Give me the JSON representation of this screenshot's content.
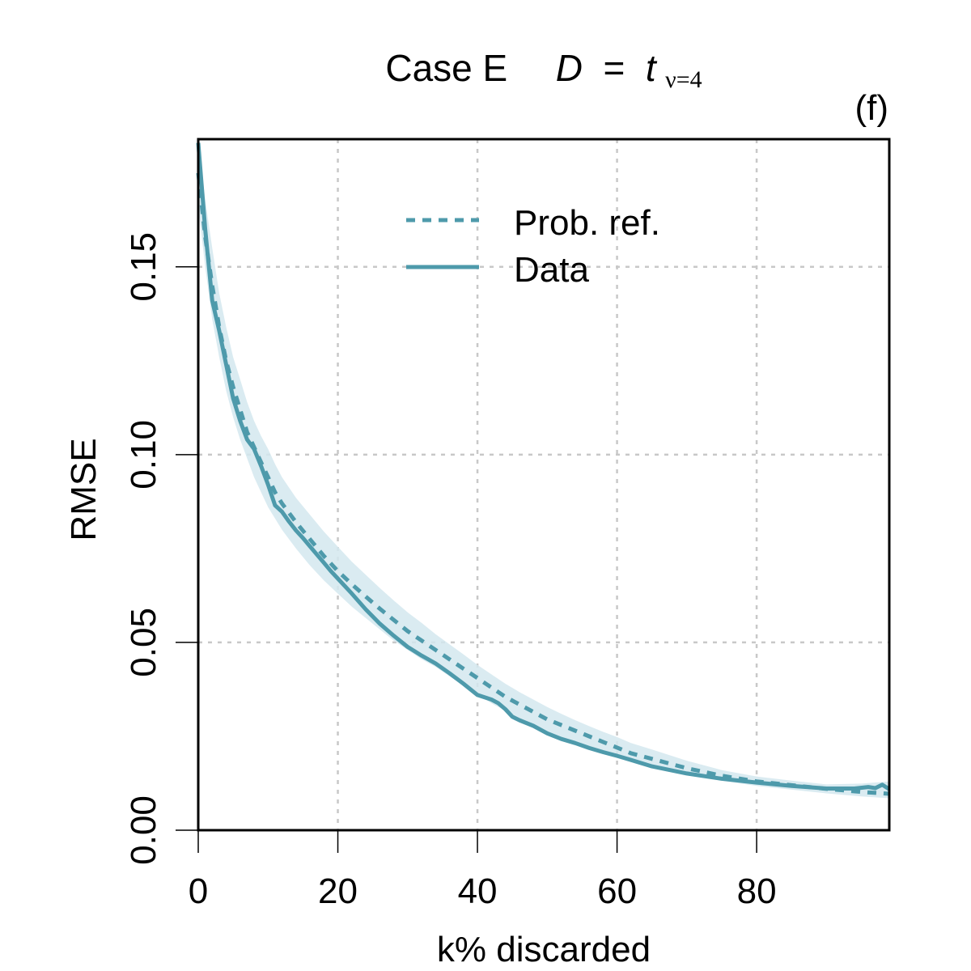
{
  "chart_data": {
    "type": "line",
    "title_case": "Case E",
    "title_var": "D",
    "title_eq": "=",
    "title_t": "t",
    "title_sub": "ν=4",
    "panel_label": "(f)",
    "xlabel": "k% discarded",
    "ylabel": "RMSE",
    "xlim": [
      0,
      99
    ],
    "ylim": [
      0,
      0.184
    ],
    "x_ticks": [
      0,
      20,
      40,
      60,
      80
    ],
    "x_tick_labels": [
      "0",
      "20",
      "40",
      "60",
      "80"
    ],
    "y_ticks": [
      0,
      0.05,
      0.1,
      0.15
    ],
    "y_tick_labels": [
      "0.00",
      "0.05",
      "0.10",
      "0.15"
    ],
    "grid": true,
    "legend_position": "top-center",
    "colors": {
      "series": "#4e9aab",
      "band": "#d3e7ee",
      "grid": "#c8c8c8"
    },
    "series": [
      {
        "name": "Prob. ref.",
        "style": "dashed",
        "x": [
          0,
          1,
          2,
          3,
          4,
          5,
          6,
          7,
          8,
          9,
          10,
          11,
          12,
          14,
          16,
          18,
          20,
          22,
          24,
          26,
          28,
          30,
          32,
          34,
          36,
          38,
          40,
          42,
          44,
          46,
          48,
          50,
          52,
          54,
          56,
          58,
          60,
          62,
          65,
          70,
          75,
          80,
          85,
          90,
          95,
          99
        ],
        "values": [
          0.175,
          0.158,
          0.145,
          0.134,
          0.125,
          0.118,
          0.112,
          0.106,
          0.102,
          0.098,
          0.094,
          0.09,
          0.087,
          0.082,
          0.0775,
          0.073,
          0.069,
          0.0655,
          0.0622,
          0.059,
          0.056,
          0.053,
          0.0505,
          0.048,
          0.0455,
          0.043,
          0.0405,
          0.038,
          0.0355,
          0.0335,
          0.0315,
          0.0295,
          0.028,
          0.0265,
          0.025,
          0.0235,
          0.022,
          0.0205,
          0.019,
          0.0165,
          0.0145,
          0.013,
          0.012,
          0.011,
          0.0102,
          0.0097
        ]
      },
      {
        "name": "Data",
        "style": "solid",
        "x": [
          0,
          1,
          2,
          3,
          4,
          5,
          6,
          7,
          8,
          9,
          10,
          11,
          12,
          13,
          14,
          15,
          16,
          17,
          18,
          19,
          20,
          22,
          24,
          26,
          28,
          30,
          32,
          34,
          36,
          38,
          40,
          42,
          43,
          44,
          45,
          46,
          48,
          50,
          52,
          54,
          56,
          58,
          60,
          62,
          65,
          70,
          75,
          80,
          85,
          90,
          94,
          96,
          97,
          98,
          99
        ],
        "values": [
          0.183,
          0.16,
          0.141,
          0.133,
          0.124,
          0.115,
          0.109,
          0.104,
          0.1015,
          0.097,
          0.092,
          0.0865,
          0.0848,
          0.0822,
          0.0798,
          0.0778,
          0.0756,
          0.0734,
          0.0712,
          0.069,
          0.067,
          0.063,
          0.0588,
          0.055,
          0.0518,
          0.0488,
          0.0465,
          0.0444,
          0.0418,
          0.039,
          0.036,
          0.0348,
          0.0338,
          0.0322,
          0.0302,
          0.0293,
          0.0278,
          0.0258,
          0.0243,
          0.0232,
          0.0219,
          0.0208,
          0.0198,
          0.0187,
          0.017,
          0.0151,
          0.0137,
          0.0127,
          0.0118,
          0.0111,
          0.0111,
          0.0115,
          0.0112,
          0.0121,
          0.0109
        ]
      }
    ],
    "band": {
      "name": "uncertainty band",
      "x": [
        0,
        1,
        2,
        3,
        4,
        5,
        6,
        7,
        8,
        9,
        10,
        11,
        12,
        14,
        16,
        18,
        20,
        22,
        24,
        26,
        28,
        30,
        32,
        34,
        36,
        38,
        40,
        42,
        44,
        46,
        48,
        50,
        52,
        54,
        56,
        58,
        60,
        62,
        65,
        70,
        75,
        80,
        85,
        90,
        95,
        99
      ],
      "lower": [
        0.166,
        0.15,
        0.136,
        0.126,
        0.117,
        0.11,
        0.104,
        0.099,
        0.094,
        0.09,
        0.086,
        0.083,
        0.08,
        0.075,
        0.0705,
        0.0665,
        0.063,
        0.0595,
        0.0565,
        0.0535,
        0.0505,
        0.048,
        0.0455,
        0.0435,
        0.041,
        0.0385,
        0.0362,
        0.0338,
        0.0318,
        0.0298,
        0.028,
        0.0263,
        0.0248,
        0.0235,
        0.0222,
        0.021,
        0.0198,
        0.0185,
        0.0172,
        0.015,
        0.0132,
        0.0118,
        0.0108,
        0.0098,
        0.009,
        0.0085
      ],
      "upper": [
        0.184,
        0.168,
        0.155,
        0.143,
        0.134,
        0.126,
        0.12,
        0.114,
        0.109,
        0.105,
        0.1015,
        0.0975,
        0.094,
        0.0885,
        0.084,
        0.0795,
        0.0755,
        0.0715,
        0.068,
        0.0645,
        0.0612,
        0.058,
        0.0552,
        0.0522,
        0.0495,
        0.0468,
        0.044,
        0.0415,
        0.039,
        0.0368,
        0.0348,
        0.0328,
        0.031,
        0.0293,
        0.0277,
        0.0262,
        0.0248,
        0.0232,
        0.0215,
        0.0185,
        0.016,
        0.0143,
        0.0132,
        0.0122,
        0.0124,
        0.013
      ]
    }
  }
}
